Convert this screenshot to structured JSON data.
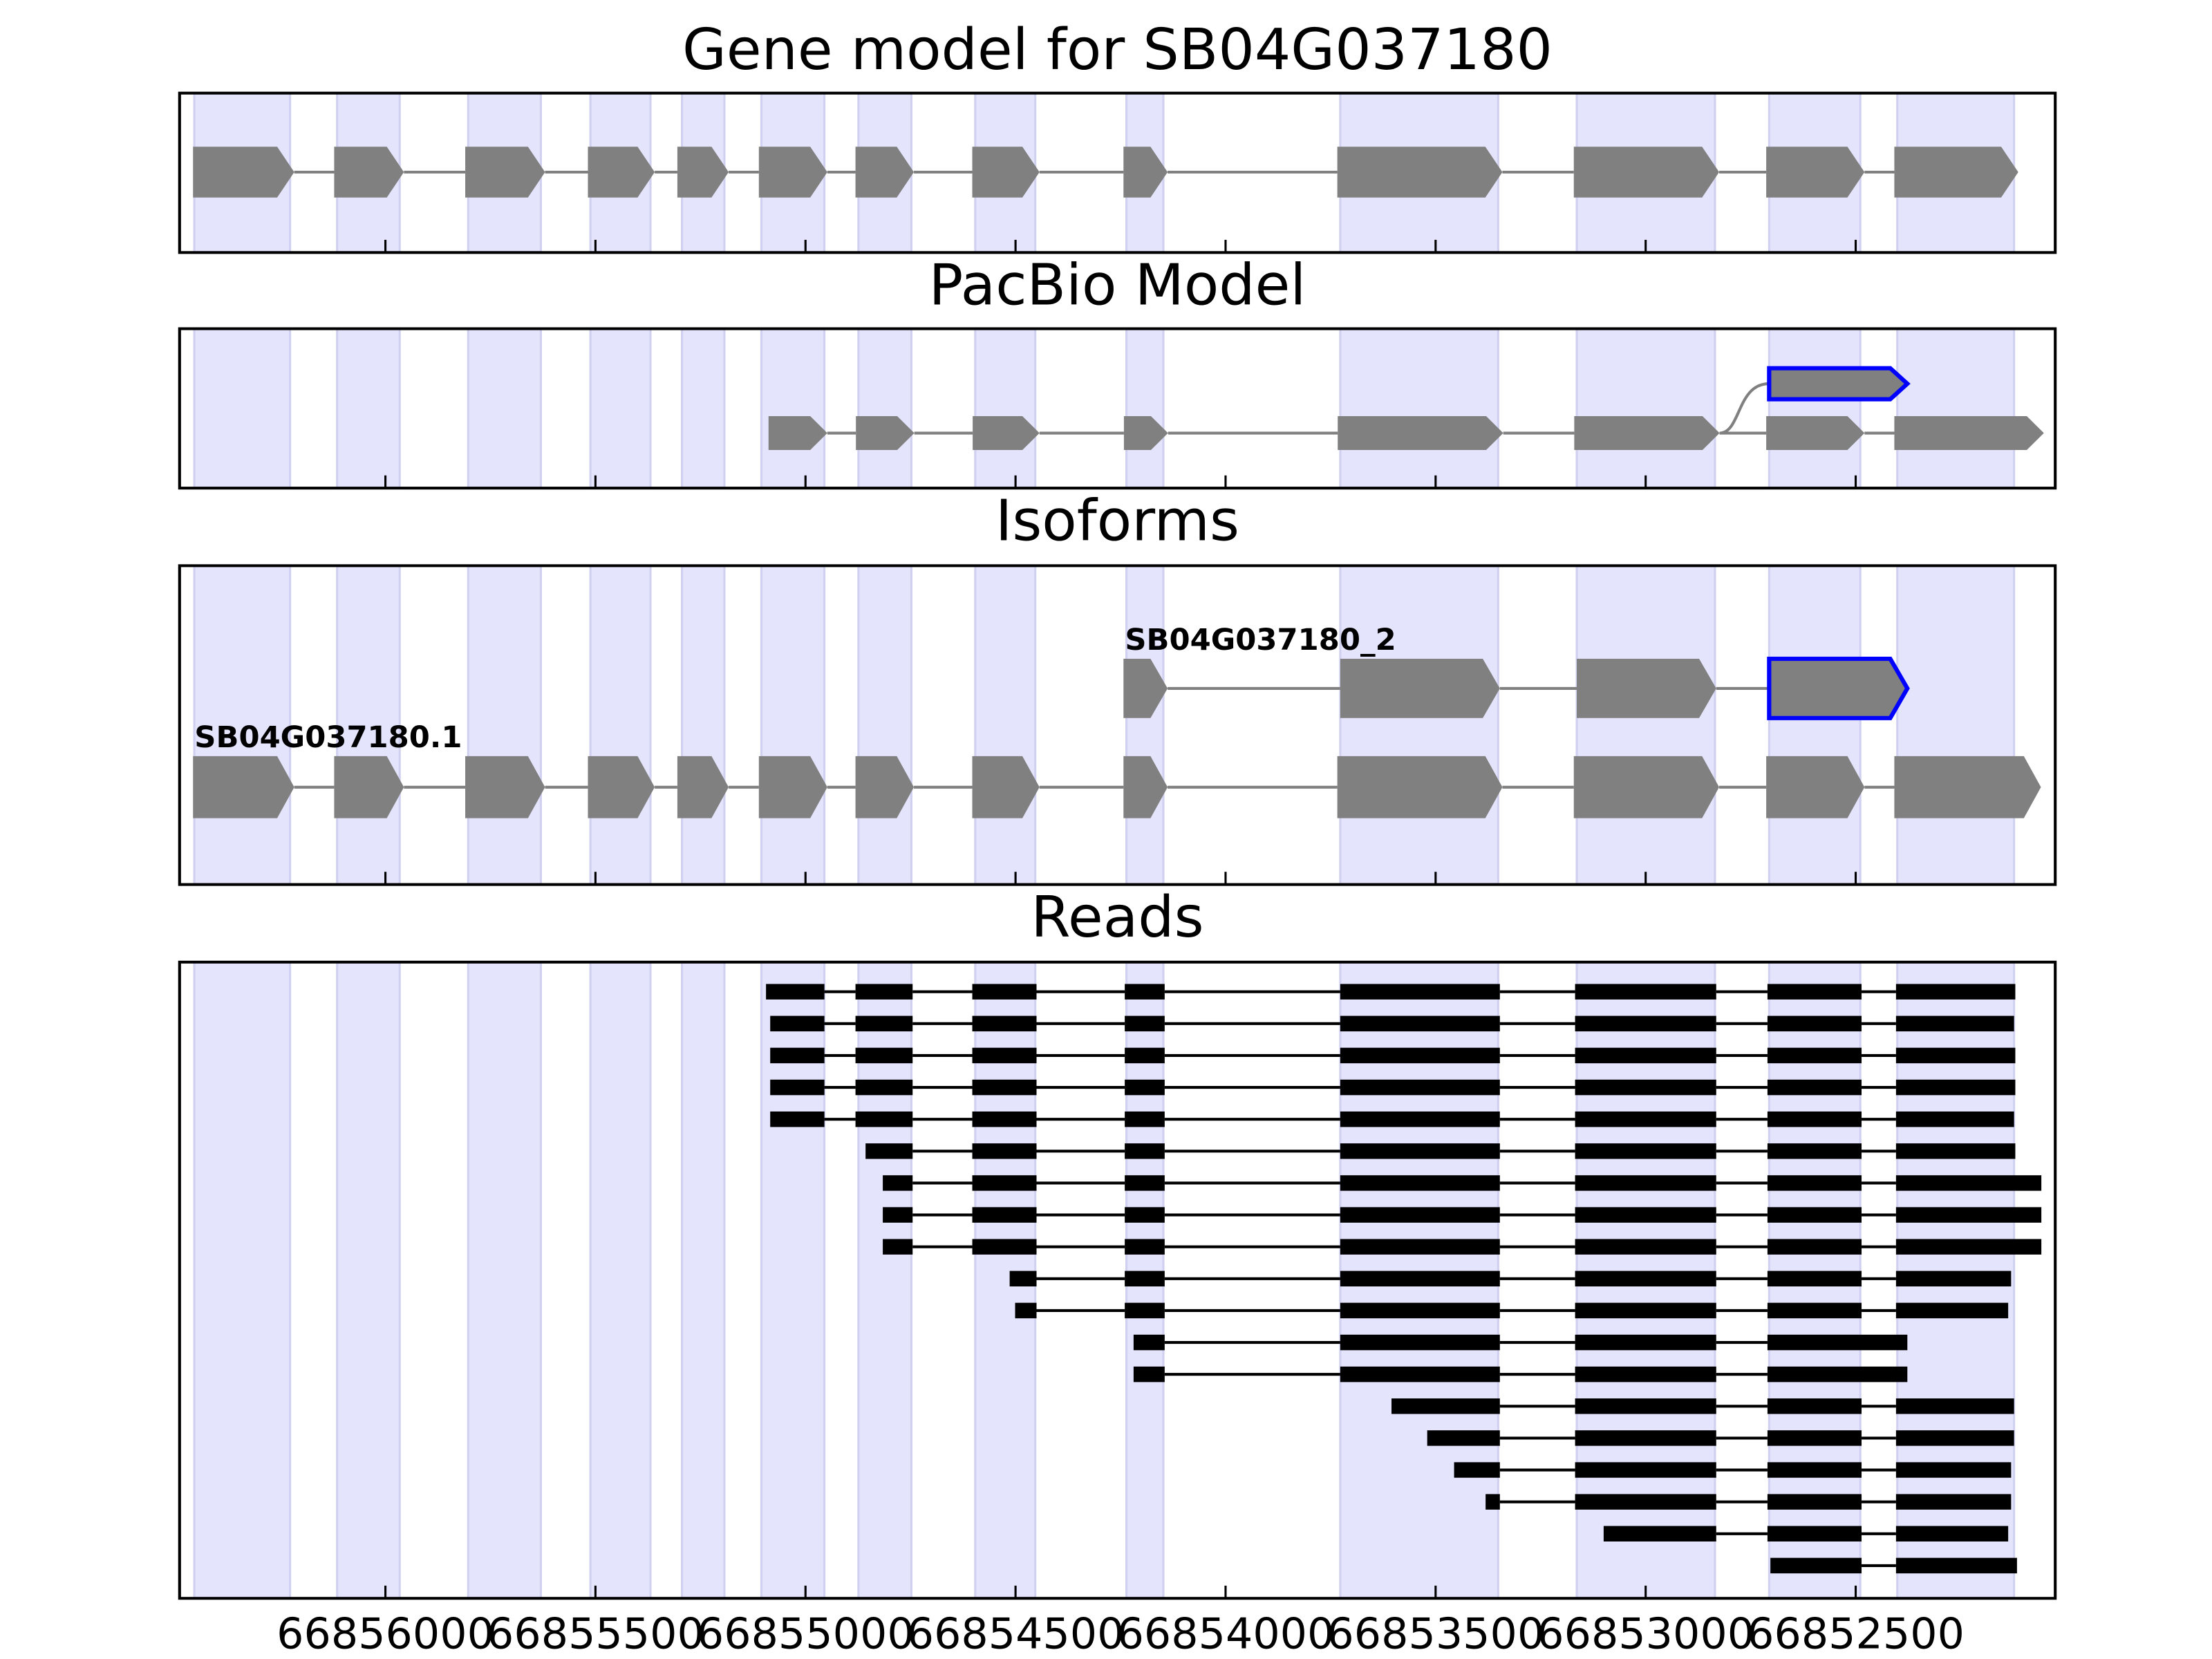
{
  "chart_data": {
    "type": "gene-tracks",
    "xlim": [
      66856490,
      66852025
    ],
    "xticks": [
      66856000,
      66855500,
      66855000,
      66854500,
      66854000,
      66853500,
      66853000,
      66852500
    ],
    "bands": [
      [
        66856455,
        66856227
      ],
      [
        66856115,
        66855966
      ],
      [
        66855803,
        66855630
      ],
      [
        66855512,
        66855369
      ],
      [
        66855294,
        66855193
      ],
      [
        66855105,
        66854955
      ],
      [
        66854874,
        66854748
      ],
      [
        66854596,
        66854453
      ],
      [
        66854236,
        66854148
      ],
      [
        66853727,
        66853351
      ],
      [
        66853164,
        66852835
      ],
      [
        66852706,
        66852489
      ],
      [
        66852401,
        66852123
      ]
    ],
    "band_color": "#e4e4fc",
    "exon_color": "#808080",
    "novel_color": "#0000ff",
    "read_color": "#000000",
    "panels": [
      {
        "title": "Gene model for SB04G037180",
        "style": "arrow",
        "rows": [
          {
            "exons": [
              [
                66856458,
                66856217
              ],
              [
                66856122,
                66855956
              ],
              [
                66855810,
                66855620
              ],
              [
                66855518,
                66855359
              ],
              [
                66855305,
                66855183
              ],
              [
                66855111,
                66854948
              ],
              [
                66854881,
                66854742
              ],
              [
                66854603,
                66854443
              ],
              [
                66854243,
                66854138
              ],
              [
                66853734,
                66853341
              ],
              [
                66853171,
                66852825
              ],
              [
                66852713,
                66852479
              ],
              [
                66852408,
                66852113
              ]
            ]
          }
        ]
      },
      {
        "title": "PacBio Model",
        "style": "arrow",
        "rows": [
          {
            "exons": [
              [
                66852706,
                66852377
              ]
            ],
            "novel_exon": 0
          },
          {
            "exons": [
              [
                66855088,
                66854948
              ],
              [
                66854880,
                66854741
              ],
              [
                66854602,
                66854443
              ],
              [
                66854242,
                66854137
              ],
              [
                66853733,
                66853339
              ],
              [
                66853170,
                66852824
              ],
              [
                66852713,
                66852479
              ],
              [
                66852408,
                66852052
              ]
            ]
          }
        ]
      },
      {
        "title": "Isoforms",
        "style": "arrow",
        "rows": [
          {
            "name": "SB04G037180_2",
            "exons": [
              [
                66854243,
                66854138
              ],
              [
                66853727,
                66853347
              ],
              [
                66853164,
                66852832
              ],
              [
                66852706,
                66852377
              ]
            ],
            "novel_exon": 3
          },
          {
            "name": "SB04G037180.1",
            "exons": [
              [
                66856458,
                66856217
              ],
              [
                66856122,
                66855956
              ],
              [
                66855810,
                66855620
              ],
              [
                66855518,
                66855359
              ],
              [
                66855305,
                66855183
              ],
              [
                66855111,
                66854948
              ],
              [
                66854881,
                66854742
              ],
              [
                66854603,
                66854443
              ],
              [
                66854243,
                66854138
              ],
              [
                66853734,
                66853341
              ],
              [
                66853171,
                66852825
              ],
              [
                66852713,
                66852479
              ],
              [
                66852408,
                66852059
              ]
            ]
          }
        ]
      },
      {
        "title": "Reads",
        "style": "bar",
        "rows": [
          {
            "exons": [
              [
                66855094,
                66854955
              ],
              [
                66854881,
                66854745
              ],
              [
                66854603,
                66854450
              ],
              [
                66854240,
                66854145
              ],
              [
                66853727,
                66853347
              ],
              [
                66853168,
                66852832
              ],
              [
                66852710,
                66852486
              ],
              [
                66852404,
                66852120
              ]
            ]
          },
          {
            "exons": [
              [
                66855084,
                66854955
              ],
              [
                66854881,
                66854745
              ],
              [
                66854603,
                66854450
              ],
              [
                66854240,
                66854145
              ],
              [
                66853727,
                66853347
              ],
              [
                66853168,
                66852832
              ],
              [
                66852710,
                66852486
              ],
              [
                66852404,
                66852123
              ]
            ]
          },
          {
            "exons": [
              [
                66855084,
                66854955
              ],
              [
                66854881,
                66854745
              ],
              [
                66854603,
                66854450
              ],
              [
                66854240,
                66854145
              ],
              [
                66853727,
                66853347
              ],
              [
                66853168,
                66852832
              ],
              [
                66852710,
                66852486
              ],
              [
                66852404,
                66852120
              ]
            ]
          },
          {
            "exons": [
              [
                66855084,
                66854955
              ],
              [
                66854881,
                66854745
              ],
              [
                66854603,
                66854450
              ],
              [
                66854240,
                66854145
              ],
              [
                66853727,
                66853347
              ],
              [
                66853168,
                66852832
              ],
              [
                66852710,
                66852486
              ],
              [
                66852404,
                66852120
              ]
            ]
          },
          {
            "exons": [
              [
                66855084,
                66854955
              ],
              [
                66854881,
                66854745
              ],
              [
                66854603,
                66854450
              ],
              [
                66854240,
                66854145
              ],
              [
                66853727,
                66853347
              ],
              [
                66853168,
                66852832
              ],
              [
                66852710,
                66852486
              ],
              [
                66852404,
                66852123
              ]
            ]
          },
          {
            "exons": [
              [
                66854857,
                66854745
              ],
              [
                66854603,
                66854450
              ],
              [
                66854240,
                66854145
              ],
              [
                66853727,
                66853347
              ],
              [
                66853168,
                66852832
              ],
              [
                66852710,
                66852486
              ],
              [
                66852404,
                66852120
              ]
            ]
          },
          {
            "exons": [
              [
                66854816,
                66854745
              ],
              [
                66854603,
                66854450
              ],
              [
                66854240,
                66854145
              ],
              [
                66853727,
                66853347
              ],
              [
                66853168,
                66852832
              ],
              [
                66852710,
                66852486
              ],
              [
                66852404,
                66852058
              ]
            ]
          },
          {
            "exons": [
              [
                66854816,
                66854745
              ],
              [
                66854603,
                66854450
              ],
              [
                66854240,
                66854145
              ],
              [
                66853727,
                66853347
              ],
              [
                66853168,
                66852832
              ],
              [
                66852710,
                66852486
              ],
              [
                66852404,
                66852058
              ]
            ]
          },
          {
            "exons": [
              [
                66854816,
                66854745
              ],
              [
                66854603,
                66854450
              ],
              [
                66854240,
                66854145
              ],
              [
                66853727,
                66853347
              ],
              [
                66853168,
                66852832
              ],
              [
                66852710,
                66852486
              ],
              [
                66852404,
                66852058
              ]
            ]
          },
          {
            "exons": [
              [
                66854514,
                66854450
              ],
              [
                66854240,
                66854145
              ],
              [
                66853727,
                66853347
              ],
              [
                66853168,
                66852832
              ],
              [
                66852710,
                66852486
              ],
              [
                66852404,
                66852130
              ]
            ]
          },
          {
            "exons": [
              [
                66854501,
                66854450
              ],
              [
                66854240,
                66854145
              ],
              [
                66853727,
                66853347
              ],
              [
                66853168,
                66852832
              ],
              [
                66852710,
                66852486
              ],
              [
                66852404,
                66852137
              ]
            ]
          },
          {
            "exons": [
              [
                66854219,
                66854145
              ],
              [
                66853727,
                66853347
              ],
              [
                66853168,
                66852832
              ],
              [
                66852710,
                66852377
              ]
            ]
          },
          {
            "exons": [
              [
                66854219,
                66854145
              ],
              [
                66853727,
                66853347
              ],
              [
                66853168,
                66852832
              ],
              [
                66852710,
                66852377
              ]
            ]
          },
          {
            "exons": [
              [
                66853605,
                66853347
              ],
              [
                66853168,
                66852832
              ],
              [
                66852710,
                66852486
              ],
              [
                66852404,
                66852123
              ]
            ]
          },
          {
            "exons": [
              [
                66853520,
                66853347
              ],
              [
                66853168,
                66852832
              ],
              [
                66852710,
                66852486
              ],
              [
                66852404,
                66852123
              ]
            ]
          },
          {
            "exons": [
              [
                66853456,
                66853347
              ],
              [
                66853168,
                66852832
              ],
              [
                66852710,
                66852486
              ],
              [
                66852404,
                66852130
              ]
            ]
          },
          {
            "exons": [
              [
                66853381,
                66853347
              ],
              [
                66853168,
                66852832
              ],
              [
                66852710,
                66852486
              ],
              [
                66852404,
                66852130
              ]
            ]
          },
          {
            "exons": [
              [
                66853100,
                66852832
              ],
              [
                66852710,
                66852486
              ],
              [
                66852404,
                66852137
              ]
            ]
          },
          {
            "exons": [
              [
                66852703,
                66852486
              ],
              [
                66852404,
                66852116
              ]
            ]
          }
        ]
      }
    ]
  }
}
